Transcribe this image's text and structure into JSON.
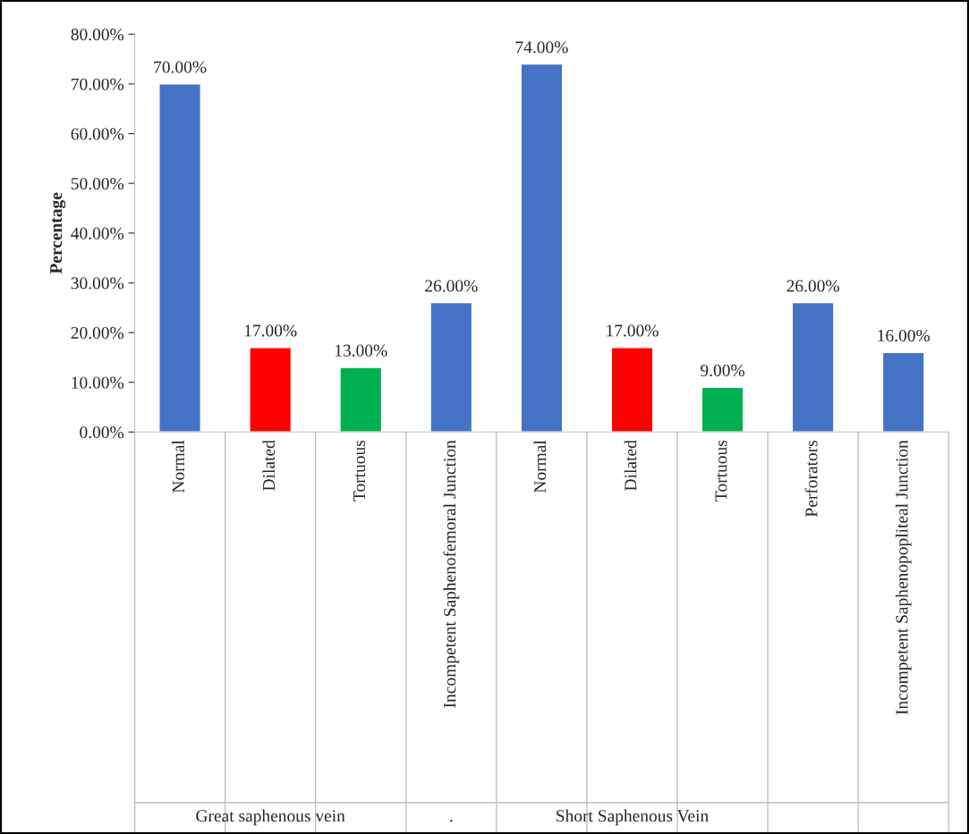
{
  "chart_data": {
    "type": "bar",
    "ylabel": "Percentage",
    "categories": [
      "Normal",
      "Dilated",
      "Tortuous",
      "Incompetent Saphenofemoral Junction",
      "Normal",
      "Dilated",
      "Tortuous",
      "Perforators",
      "Incompetent Saphenopopliteal Junction"
    ],
    "values": [
      70,
      17,
      13,
      26,
      74,
      17,
      9,
      26,
      16
    ],
    "colors": [
      "#4472c4",
      "#ff0000",
      "#00b050",
      "#4472c4",
      "#4472c4",
      "#ff0000",
      "#00b050",
      "#4472c4",
      "#4472c4"
    ],
    "value_labels": [
      "70.00%",
      "17.00%",
      "13.00%",
      "26.00%",
      "74.00%",
      "17.00%",
      "9.00%",
      "26.00%",
      "16.00%"
    ],
    "ylim": [
      0,
      80
    ],
    "yticks": [
      {
        "value": 0,
        "label": "0.00%"
      },
      {
        "value": 10,
        "label": "10.00%"
      },
      {
        "value": 20,
        "label": "20.00%"
      },
      {
        "value": 30,
        "label": "30.00%"
      },
      {
        "value": 40,
        "label": "40.00%"
      },
      {
        "value": 50,
        "label": "50.00%"
      },
      {
        "value": 60,
        "label": "60.00%"
      },
      {
        "value": 70,
        "label": "70.00%"
      },
      {
        "value": 80,
        "label": "80.00%"
      }
    ],
    "annotations": [
      "Great saphenous vein",
      ".",
      "Short Saphenous Vein"
    ]
  }
}
